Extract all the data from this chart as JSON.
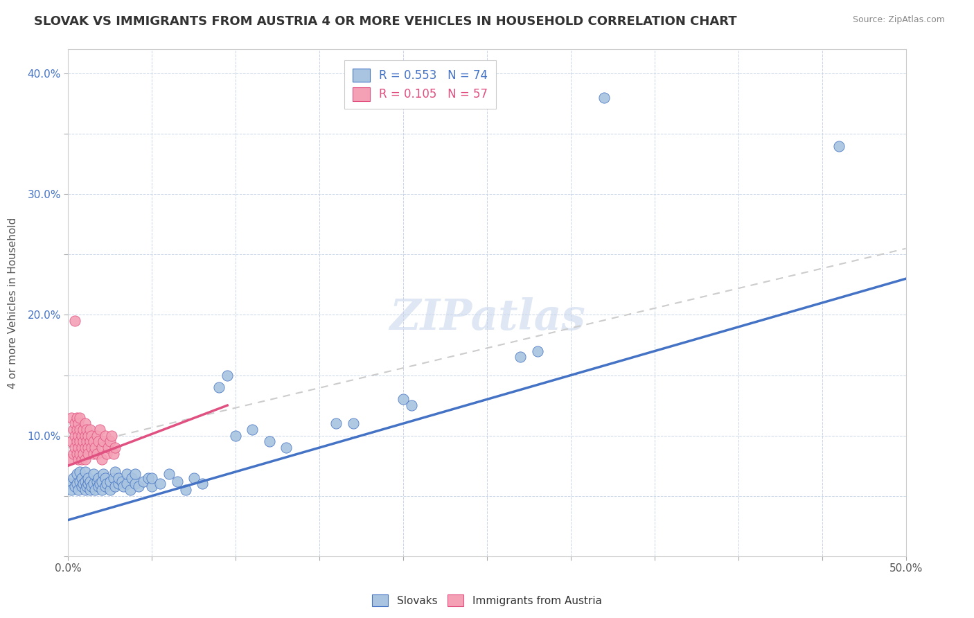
{
  "title": "SLOVAK VS IMMIGRANTS FROM AUSTRIA 4 OR MORE VEHICLES IN HOUSEHOLD CORRELATION CHART",
  "source": "Source: ZipAtlas.com",
  "xlabel": "",
  "ylabel": "4 or more Vehicles in Household",
  "xlim": [
    0.0,
    0.5
  ],
  "ylim": [
    0.0,
    0.42
  ],
  "xticks": [
    0.0,
    0.05,
    0.1,
    0.15,
    0.2,
    0.25,
    0.3,
    0.35,
    0.4,
    0.45,
    0.5
  ],
  "yticks": [
    0.0,
    0.05,
    0.1,
    0.15,
    0.2,
    0.25,
    0.3,
    0.35,
    0.4
  ],
  "xtick_labels": [
    "0.0%",
    "",
    "",
    "",
    "",
    "",
    "",
    "",
    "",
    "",
    "50.0%"
  ],
  "ytick_labels": [
    "",
    "",
    "10.0%",
    "",
    "20.0%",
    "",
    "30.0%",
    "",
    "40.0%"
  ],
  "legend_r1": "R = 0.553",
  "legend_n1": "N = 74",
  "legend_r2": "R = 0.105",
  "legend_n2": "N = 57",
  "color_blue": "#a8c4e0",
  "color_pink": "#f4a0b5",
  "line_blue": "#4472c4",
  "line_pink": "#e05080",
  "watermark": "ZIPatlas",
  "blue_scatter": [
    [
      0.001,
      0.06
    ],
    [
      0.002,
      0.055
    ],
    [
      0.003,
      0.065
    ],
    [
      0.004,
      0.058
    ],
    [
      0.005,
      0.06
    ],
    [
      0.005,
      0.068
    ],
    [
      0.006,
      0.055
    ],
    [
      0.007,
      0.062
    ],
    [
      0.007,
      0.07
    ],
    [
      0.008,
      0.058
    ],
    [
      0.008,
      0.065
    ],
    [
      0.009,
      0.06
    ],
    [
      0.01,
      0.055
    ],
    [
      0.01,
      0.062
    ],
    [
      0.01,
      0.07
    ],
    [
      0.011,
      0.058
    ],
    [
      0.012,
      0.06
    ],
    [
      0.012,
      0.065
    ],
    [
      0.013,
      0.055
    ],
    [
      0.013,
      0.062
    ],
    [
      0.014,
      0.058
    ],
    [
      0.015,
      0.06
    ],
    [
      0.015,
      0.068
    ],
    [
      0.016,
      0.055
    ],
    [
      0.017,
      0.062
    ],
    [
      0.018,
      0.058
    ],
    [
      0.018,
      0.065
    ],
    [
      0.019,
      0.06
    ],
    [
      0.02,
      0.055
    ],
    [
      0.02,
      0.062
    ],
    [
      0.021,
      0.068
    ],
    [
      0.022,
      0.058
    ],
    [
      0.022,
      0.065
    ],
    [
      0.023,
      0.06
    ],
    [
      0.025,
      0.055
    ],
    [
      0.025,
      0.062
    ],
    [
      0.027,
      0.065
    ],
    [
      0.028,
      0.058
    ],
    [
      0.028,
      0.07
    ],
    [
      0.03,
      0.06
    ],
    [
      0.03,
      0.065
    ],
    [
      0.032,
      0.062
    ],
    [
      0.033,
      0.058
    ],
    [
      0.035,
      0.06
    ],
    [
      0.035,
      0.068
    ],
    [
      0.037,
      0.055
    ],
    [
      0.038,
      0.065
    ],
    [
      0.04,
      0.06
    ],
    [
      0.04,
      0.068
    ],
    [
      0.042,
      0.058
    ],
    [
      0.045,
      0.062
    ],
    [
      0.048,
      0.065
    ],
    [
      0.05,
      0.058
    ],
    [
      0.05,
      0.065
    ],
    [
      0.055,
      0.06
    ],
    [
      0.06,
      0.068
    ],
    [
      0.065,
      0.062
    ],
    [
      0.07,
      0.055
    ],
    [
      0.075,
      0.065
    ],
    [
      0.08,
      0.06
    ],
    [
      0.09,
      0.14
    ],
    [
      0.095,
      0.15
    ],
    [
      0.1,
      0.1
    ],
    [
      0.11,
      0.105
    ],
    [
      0.12,
      0.095
    ],
    [
      0.13,
      0.09
    ],
    [
      0.16,
      0.11
    ],
    [
      0.17,
      0.11
    ],
    [
      0.2,
      0.13
    ],
    [
      0.205,
      0.125
    ],
    [
      0.27,
      0.165
    ],
    [
      0.28,
      0.17
    ],
    [
      0.32,
      0.38
    ],
    [
      0.46,
      0.34
    ]
  ],
  "pink_scatter": [
    [
      0.001,
      0.08
    ],
    [
      0.002,
      0.115
    ],
    [
      0.002,
      0.095
    ],
    [
      0.003,
      0.105
    ],
    [
      0.003,
      0.085
    ],
    [
      0.004,
      0.1
    ],
    [
      0.004,
      0.09
    ],
    [
      0.004,
      0.11
    ],
    [
      0.005,
      0.095
    ],
    [
      0.005,
      0.105
    ],
    [
      0.005,
      0.085
    ],
    [
      0.005,
      0.115
    ],
    [
      0.006,
      0.09
    ],
    [
      0.006,
      0.1
    ],
    [
      0.006,
      0.11
    ],
    [
      0.006,
      0.08
    ],
    [
      0.007,
      0.095
    ],
    [
      0.007,
      0.105
    ],
    [
      0.007,
      0.085
    ],
    [
      0.007,
      0.115
    ],
    [
      0.008,
      0.09
    ],
    [
      0.008,
      0.1
    ],
    [
      0.008,
      0.08
    ],
    [
      0.009,
      0.095
    ],
    [
      0.009,
      0.105
    ],
    [
      0.009,
      0.085
    ],
    [
      0.01,
      0.09
    ],
    [
      0.01,
      0.1
    ],
    [
      0.01,
      0.11
    ],
    [
      0.01,
      0.08
    ],
    [
      0.011,
      0.095
    ],
    [
      0.011,
      0.105
    ],
    [
      0.012,
      0.09
    ],
    [
      0.012,
      0.1
    ],
    [
      0.012,
      0.085
    ],
    [
      0.013,
      0.095
    ],
    [
      0.013,
      0.105
    ],
    [
      0.014,
      0.09
    ],
    [
      0.014,
      0.1
    ],
    [
      0.015,
      0.085
    ],
    [
      0.015,
      0.095
    ],
    [
      0.016,
      0.09
    ],
    [
      0.017,
      0.1
    ],
    [
      0.017,
      0.085
    ],
    [
      0.018,
      0.095
    ],
    [
      0.019,
      0.105
    ],
    [
      0.02,
      0.09
    ],
    [
      0.02,
      0.08
    ],
    [
      0.021,
      0.095
    ],
    [
      0.022,
      0.1
    ],
    [
      0.023,
      0.085
    ],
    [
      0.024,
      0.09
    ],
    [
      0.025,
      0.095
    ],
    [
      0.004,
      0.195
    ],
    [
      0.026,
      0.1
    ],
    [
      0.027,
      0.085
    ],
    [
      0.028,
      0.09
    ]
  ],
  "blue_line": [
    [
      0.0,
      0.03
    ],
    [
      0.5,
      0.23
    ]
  ],
  "pink_line_solid": [
    [
      0.0,
      0.075
    ],
    [
      0.095,
      0.125
    ]
  ],
  "pink_line_dashed": [
    [
      0.0,
      0.09
    ],
    [
      0.5,
      0.255
    ]
  ],
  "background_color": "#ffffff",
  "grid_color": "#c8d4e8"
}
